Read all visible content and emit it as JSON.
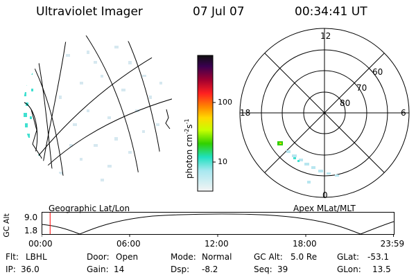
{
  "header": {
    "title": "Ultraviolet Imager",
    "date": "07 Jul 07",
    "time": "00:34:41 UT"
  },
  "colorbar": {
    "unit_label": "photon cm",
    "unit_exp_1": "-2",
    "unit_mid": "s",
    "unit_exp_2": "-1",
    "ticks": [
      "100",
      "10"
    ]
  },
  "polar": {
    "mlt_labels": {
      "top": "12",
      "left": "18",
      "right": "6",
      "bottom": "0"
    },
    "lat_labels": [
      "60",
      "70",
      "80"
    ]
  },
  "timeline": {
    "left_title": "Geographic Lat/Lon",
    "right_title": "Apex MLat/MLT",
    "axis_label": "GC Alt",
    "y_ticks": [
      "9.0",
      "1.8"
    ],
    "x_ticks": [
      "00:00",
      "06:00",
      "12:00",
      "18:00",
      "23:59"
    ],
    "x_tick_hours": [
      0,
      6,
      12,
      18,
      23.98
    ],
    "current_time_hours": 0.58
  },
  "info": {
    "flt_label": "Flt:",
    "flt_value": "LBHL",
    "ip_label": "IP:",
    "ip_value": "36.0",
    "door_label": "Door:",
    "door_value": "Open",
    "gain_label": "Gain:",
    "gain_value": "14",
    "mode_label": "Mode:",
    "mode_value": "Normal",
    "dsp_label": "Dsp:",
    "dsp_value": "-8.2",
    "gcalt_label": "GC Alt:",
    "gcalt_value": "5.0 Re",
    "seq_label": "Seq:",
    "seq_value": "39",
    "glat_label": "GLat:",
    "glat_value": "-53.1",
    "glon_label": "GLon:",
    "glon_value": "13.5"
  },
  "colors": {
    "emission_cyan": "#40e0d0",
    "emission_light": "#cfe7f0",
    "time_marker": "#ff0000"
  }
}
